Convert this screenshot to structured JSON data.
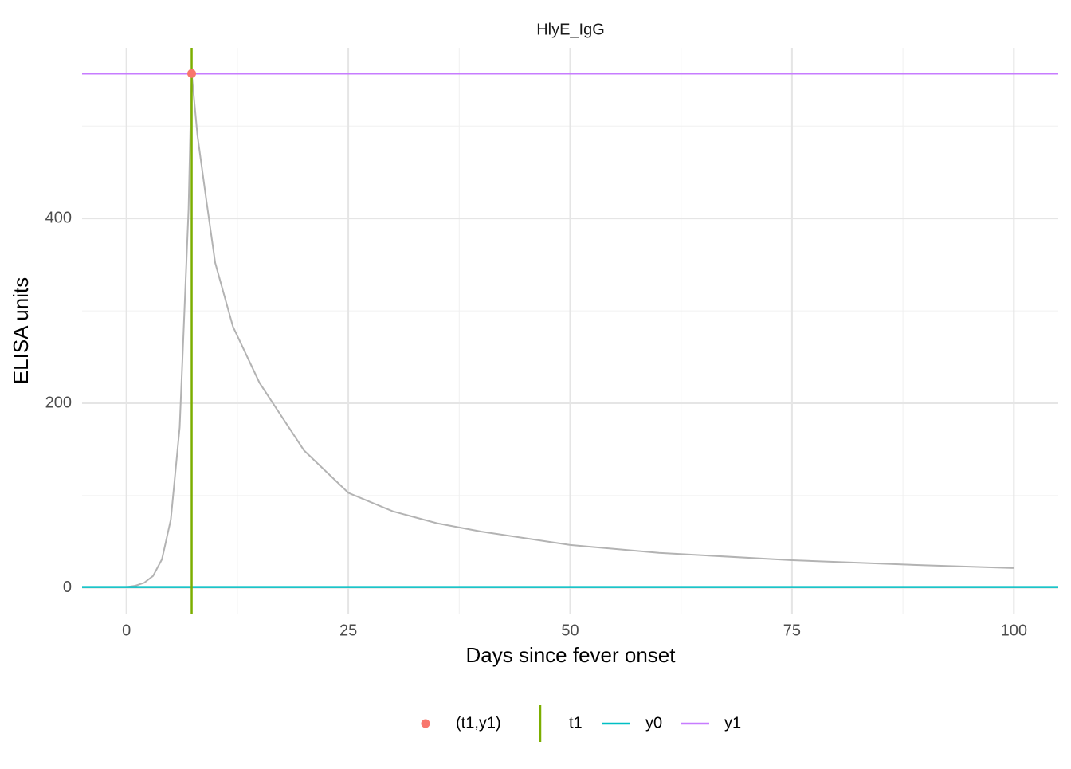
{
  "chart_data": {
    "type": "line",
    "title": "HlyE_IgG",
    "x_label": "Days since fever onset",
    "y_label": "ELISA units",
    "x": [
      0,
      1,
      2,
      3,
      4,
      5,
      6,
      7,
      7.35,
      8,
      9,
      10,
      12,
      15,
      20,
      25,
      30,
      35,
      40,
      50,
      60,
      75,
      90,
      100
    ],
    "series": [
      {
        "color": "#b3b3b3",
        "values": [
          1,
          2.4,
          5.6,
          13,
          31,
          74,
          174,
          410,
          557,
          490,
          420,
          352,
          283,
          222,
          149,
          103,
          83,
          70,
          61,
          46.5,
          38,
          30,
          24.5,
          21.5
        ]
      }
    ],
    "point": {
      "name": "(t1,y1)",
      "x": 7.35,
      "y": 557,
      "color": "#F8766D"
    },
    "vline": {
      "name": "t1",
      "x": 7.35,
      "color": "#7CAE00"
    },
    "hlines": [
      {
        "name": "y0",
        "y": 1,
        "color": "#00BFC4"
      },
      {
        "name": "y1",
        "y": 557,
        "color": "#C77CFF"
      }
    ],
    "xlim": [
      -5,
      105
    ],
    "ylim": [
      -27.8,
      584.8
    ],
    "xticks": [
      0,
      25,
      50,
      75,
      100
    ],
    "yticks": [
      0,
      200,
      400
    ],
    "x_minor_ticks": [
      12.5,
      37.5,
      62.5,
      87.5
    ],
    "y_minor_ticks": [
      100,
      300,
      500
    ],
    "grid": true,
    "legend_position": "bottom"
  }
}
